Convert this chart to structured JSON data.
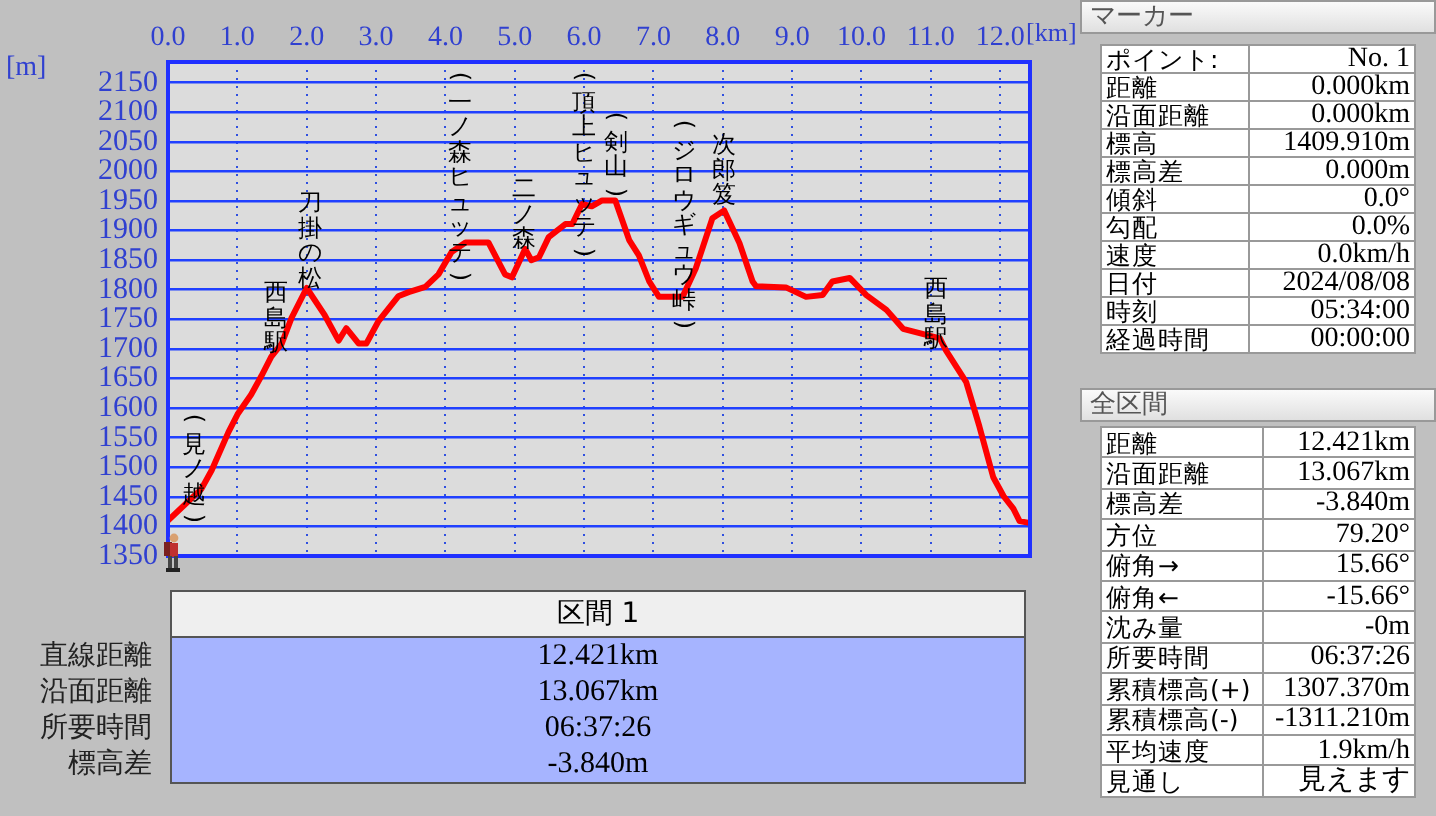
{
  "chart_data": [
    {
      "type": "line",
      "xlabel": "[km]",
      "ylabel": "[m]",
      "grid": true,
      "xlim": [
        0,
        12.43
      ],
      "ylim": [
        1350,
        2185
      ],
      "xticks": [
        {
          "value": 0,
          "label": "0.0"
        },
        {
          "value": 1,
          "label": "1.0"
        },
        {
          "value": 2,
          "label": "2.0"
        },
        {
          "value": 3,
          "label": "3.0"
        },
        {
          "value": 4,
          "label": "4.0"
        },
        {
          "value": 5,
          "label": "5.0"
        },
        {
          "value": 6,
          "label": "6.0"
        },
        {
          "value": 7,
          "label": "7.0"
        },
        {
          "value": 8,
          "label": "8.0"
        },
        {
          "value": 9,
          "label": "9.0"
        },
        {
          "value": 10,
          "label": "10.0"
        },
        {
          "value": 11,
          "label": "11.0"
        },
        {
          "value": 12,
          "label": "12.0"
        }
      ],
      "yticks": [
        1350,
        1400,
        1450,
        1500,
        1550,
        1600,
        1650,
        1700,
        1750,
        1800,
        1850,
        1900,
        1950,
        2000,
        2050,
        2100,
        2150
      ],
      "x": [
        0,
        0.48,
        0.63,
        0.87,
        1.01,
        1.2,
        1.35,
        1.49,
        1.64,
        1.78,
        2.0,
        2.26,
        2.46,
        2.57,
        2.75,
        2.86,
        3.03,
        3.32,
        3.47,
        3.71,
        3.9,
        4.09,
        4.29,
        4.62,
        4.86,
        4.96,
        5.15,
        5.24,
        5.35,
        5.49,
        5.73,
        5.83,
        5.97,
        6.11,
        6.26,
        6.45,
        6.65,
        6.79,
        6.94,
        7.08,
        7.42,
        7.61,
        7.85,
        8.02,
        8.24,
        8.43,
        8.48,
        8.91,
        9.2,
        9.44,
        9.58,
        9.83,
        10.07,
        10.36,
        10.6,
        11.13,
        11.22,
        11.51,
        11.7,
        11.9,
        12.05,
        12.19,
        12.28,
        12.42
      ],
      "values": [
        1410,
        1463,
        1495,
        1559,
        1591,
        1623,
        1655,
        1687,
        1709,
        1752,
        1803,
        1757,
        1714,
        1735,
        1709,
        1709,
        1746,
        1789,
        1796,
        1805,
        1826,
        1864,
        1880,
        1880,
        1826,
        1821,
        1869,
        1850,
        1855,
        1889,
        1911,
        1911,
        1945,
        1941,
        1951,
        1951,
        1884,
        1858,
        1814,
        1788,
        1788,
        1836,
        1921,
        1934,
        1879,
        1814,
        1806,
        1804,
        1788,
        1791,
        1814,
        1820,
        1791,
        1766,
        1734,
        1718,
        1697,
        1644,
        1569,
        1483,
        1451,
        1430,
        1409,
        1406
      ],
      "color": "#ff0000",
      "annotations": [
        "(見ノ越)",
        "西島駅",
        "刀掛の松",
        "(一ノ森ヒュッテ)",
        "二ノ森",
        "(頂上ヒュッテ)",
        "(剣山)",
        "(ジロウギュウ峠)",
        "次郎笈",
        "西島駅"
      ]
    },
    {
      "type": "other",
      "title": "マーカー",
      "annotations": [
        "ポイント:",
        "No. 1",
        "距離",
        "0.000km",
        "沿面距離",
        "0.000km",
        "標高",
        "1409.910m",
        "標高差",
        "0.000m",
        "傾斜",
        "0.0°",
        "勾配",
        "0.0%",
        "速度",
        "0.0km/h",
        "日付",
        "2024/08/08",
        "時刻",
        "05:34:00",
        "経過時間",
        "00:00:00"
      ]
    },
    {
      "type": "other",
      "title": "全区間",
      "annotations": [
        "距離",
        "12.421km",
        "沿面距離",
        "13.067km",
        "標高差",
        "-3.840m",
        "方位",
        "79.20°",
        "俯角→",
        "15.66°",
        "俯角←",
        "-15.66°",
        "沈み量",
        "-0m",
        "所要時間",
        "06:37:26",
        "累積標高(+)",
        "1307.370m",
        "累積標高(-)",
        "-1311.210m",
        "平均速度",
        "1.9km/h",
        "見通し",
        "見えます"
      ]
    },
    {
      "type": "other",
      "title": "区間 1",
      "annotations": [
        "直線距離",
        "12.421km",
        "沿面距離",
        "13.067km",
        "所要時間",
        "06:37:26",
        "標高差",
        "-3.840m"
      ]
    }
  ]
}
